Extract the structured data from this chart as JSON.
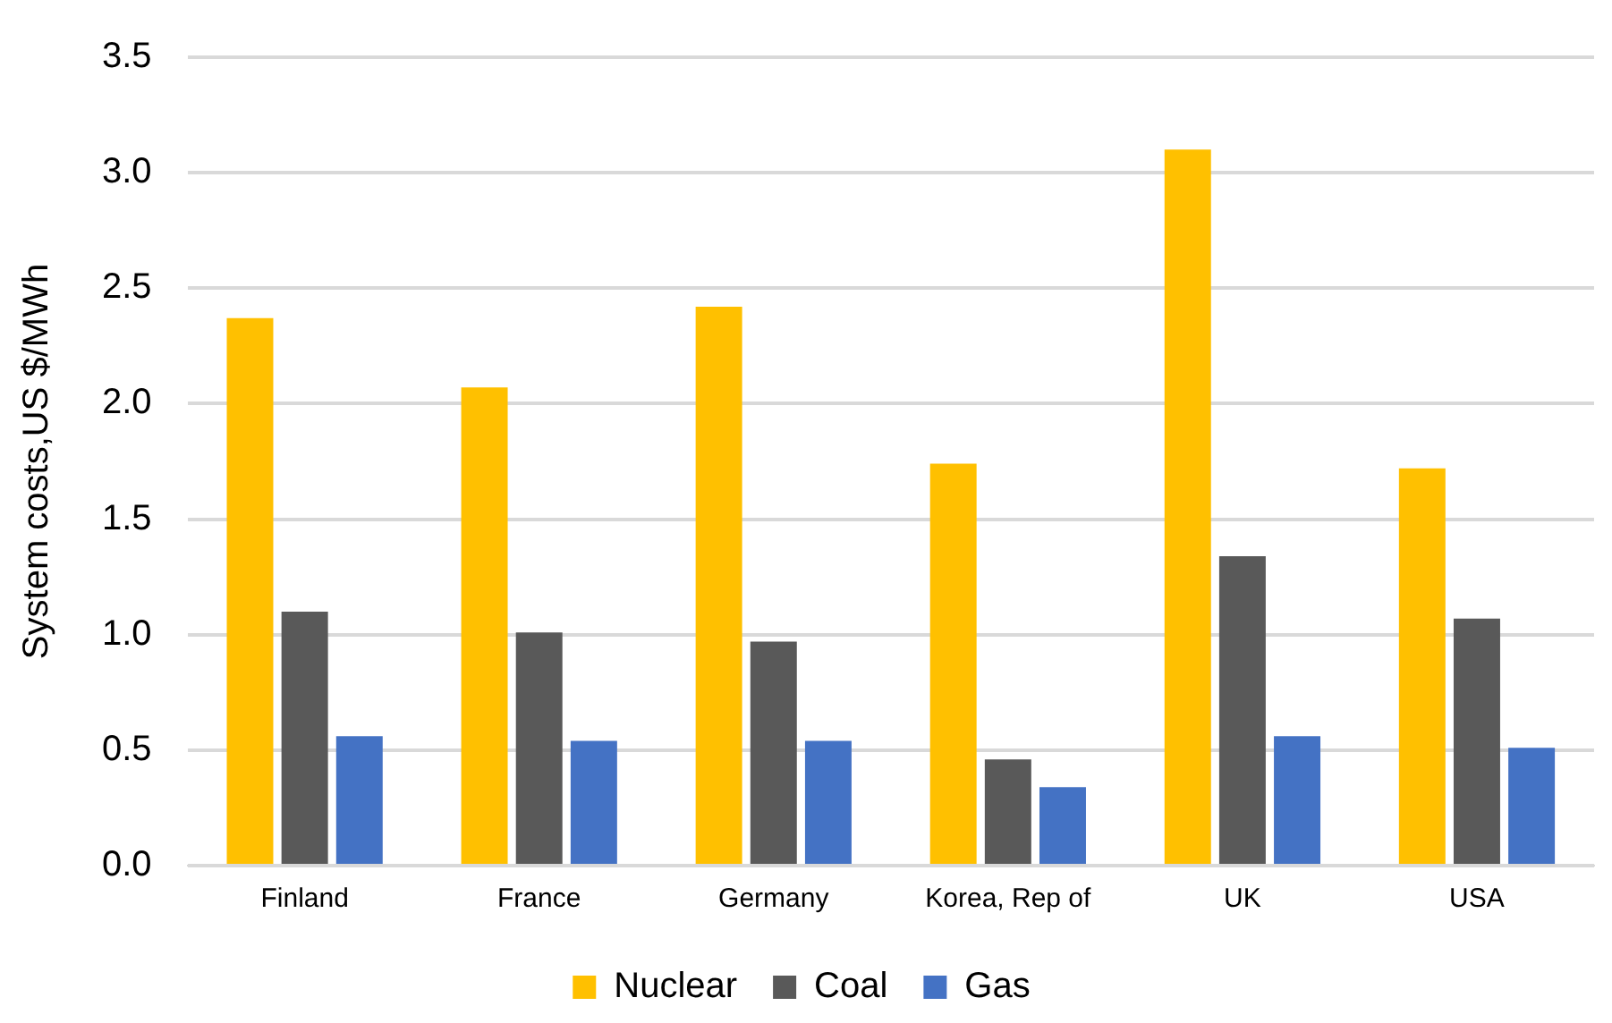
{
  "chart_data": {
    "type": "bar",
    "ylabel": "System costs,US $/MWh",
    "categories": [
      "Finland",
      "France",
      "Germany",
      "Korea, Rep of",
      "UK",
      "USA"
    ],
    "series": [
      {
        "name": "Nuclear",
        "color": "#ffc000",
        "values": [
          2.37,
          2.07,
          2.42,
          1.74,
          3.1,
          1.72
        ]
      },
      {
        "name": "Coal",
        "color": "#595959",
        "values": [
          1.1,
          1.01,
          0.97,
          0.46,
          1.34,
          1.07
        ]
      },
      {
        "name": "Gas",
        "color": "#4472c4",
        "values": [
          0.56,
          0.54,
          0.54,
          0.34,
          0.56,
          0.51
        ]
      }
    ],
    "ylim": [
      0,
      3.5
    ],
    "yticks": [
      {
        "value": 0,
        "label": "0.0"
      },
      0.5,
      {
        "value": 1,
        "label": "1.0"
      },
      1.5,
      {
        "value": 2,
        "label": "2.0"
      },
      2.5,
      {
        "value": 3,
        "label": "3.0"
      },
      3.5
    ],
    "grid": "y",
    "legend": "bottom"
  }
}
